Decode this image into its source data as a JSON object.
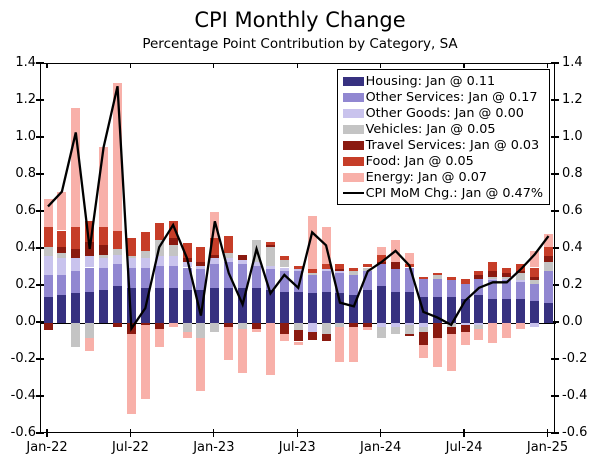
{
  "title": "CPI Monthly Change",
  "subtitle": "Percentage Point Contribution by Category, SA",
  "legend": [
    {
      "name": "housing",
      "label": "Housing: Jan @ 0.11",
      "color": "#373180",
      "kind": "patch"
    },
    {
      "name": "other-services",
      "label": "Other Services: Jan @ 0.17",
      "color": "#9187d1",
      "kind": "patch"
    },
    {
      "name": "other-goods",
      "label": "Other Goods: Jan @ 0.00",
      "color": "#c9c3ed",
      "kind": "patch"
    },
    {
      "name": "vehicles",
      "label": "Vehicles: Jan @ 0.05",
      "color": "#c4c4c4",
      "kind": "patch"
    },
    {
      "name": "travel-services",
      "label": "Travel Services: Jan @ 0.03",
      "color": "#8a1a10",
      "kind": "patch"
    },
    {
      "name": "food",
      "label": "Food: Jan @ 0.05",
      "color": "#c63d28",
      "kind": "patch"
    },
    {
      "name": "energy",
      "label": "Energy: Jan @ 0.07",
      "color": "#f8b0a9",
      "kind": "patch"
    },
    {
      "name": "cpi-mom-line",
      "label": "CPI MoM Chg.: Jan @ 0.47%",
      "color": "#000000",
      "kind": "line"
    }
  ],
  "chart_data": {
    "type": "bar",
    "subtype": "stacked-bar-with-line",
    "grid": false,
    "ylim": [
      -0.6,
      1.4
    ],
    "yticks": [
      1.4,
      1.2,
      1.0,
      0.8,
      0.6,
      0.4,
      0.2,
      0.0,
      -0.2,
      -0.4,
      -0.6
    ],
    "x_tick_labels": [
      "Jan-22",
      "Jul-22",
      "Jan-23",
      "Jul-23",
      "Jan-24",
      "Jul-24",
      "Jan-25"
    ],
    "x_tick_positions": [
      0,
      6,
      12,
      18,
      24,
      30,
      36
    ],
    "categories": [
      "Jan-22",
      "Feb-22",
      "Mar-22",
      "Apr-22",
      "May-22",
      "Jun-22",
      "Jul-22",
      "Aug-22",
      "Sep-22",
      "Oct-22",
      "Nov-22",
      "Dec-22",
      "Jan-23",
      "Feb-23",
      "Mar-23",
      "Apr-23",
      "May-23",
      "Jun-23",
      "Jul-23",
      "Aug-23",
      "Sep-23",
      "Oct-23",
      "Nov-23",
      "Dec-23",
      "Jan-24",
      "Feb-24",
      "Mar-24",
      "Apr-24",
      "May-24",
      "Jun-24",
      "Jul-24",
      "Aug-24",
      "Sep-24",
      "Oct-24",
      "Nov-24",
      "Dec-24",
      "Jan-25"
    ],
    "legend_position": "upper right",
    "series": [
      {
        "name": "Housing",
        "color": "#373180",
        "values": [
          0.14,
          0.15,
          0.16,
          0.17,
          0.18,
          0.2,
          0.19,
          0.19,
          0.19,
          0.19,
          0.18,
          0.18,
          0.19,
          0.19,
          0.19,
          0.19,
          0.18,
          0.17,
          0.17,
          0.16,
          0.17,
          0.16,
          0.15,
          0.18,
          0.2,
          0.17,
          0.17,
          0.14,
          0.14,
          0.14,
          0.13,
          0.15,
          0.13,
          0.13,
          0.13,
          0.12,
          0.11
        ]
      },
      {
        "name": "Other Services",
        "color": "#9187d1",
        "values": [
          0.12,
          0.11,
          0.12,
          0.13,
          0.12,
          0.12,
          0.11,
          0.11,
          0.12,
          0.12,
          0.12,
          0.11,
          0.13,
          0.14,
          0.13,
          0.12,
          0.11,
          0.11,
          0.11,
          0.1,
          0.11,
          0.11,
          0.11,
          0.1,
          0.12,
          0.12,
          0.13,
          0.1,
          0.1,
          0.09,
          0.08,
          0.09,
          0.1,
          0.1,
          0.09,
          0.09,
          0.17
        ]
      },
      {
        "name": "Other Goods",
        "color": "#c9c3ed",
        "values": [
          0.1,
          0.09,
          0.07,
          0.06,
          0.05,
          0.05,
          0.05,
          0.05,
          0.05,
          0.05,
          0.03,
          0.02,
          0.03,
          0.02,
          0.02,
          0.02,
          0.02,
          0.02,
          0.01,
          -0.05,
          0.01,
          0.01,
          0.0,
          0.0,
          -0.02,
          -0.02,
          -0.01,
          -0.02,
          0.0,
          0.0,
          -0.01,
          -0.01,
          0.01,
          0.01,
          0.01,
          -0.02,
          0.0
        ]
      },
      {
        "name": "Vehicles",
        "color": "#c4c4c4",
        "values": [
          0.05,
          0.03,
          -0.13,
          -0.08,
          0.02,
          0.03,
          0.01,
          0.04,
          0.09,
          0.06,
          -0.05,
          -0.08,
          -0.05,
          0.03,
          -0.03,
          0.12,
          0.1,
          0.04,
          -0.04,
          0.01,
          -0.06,
          -0.02,
          0.02,
          0.02,
          -0.06,
          -0.04,
          -0.05,
          -0.03,
          0.02,
          -0.02,
          0.0,
          -0.02,
          0.01,
          0.01,
          0.04,
          0.02,
          0.05
        ]
      },
      {
        "name": "Travel Services",
        "color": "#8a1a10",
        "values": [
          -0.04,
          0.03,
          0.05,
          0.08,
          0.05,
          -0.02,
          -0.06,
          -0.01,
          -0.03,
          0.04,
          0.02,
          0.02,
          0.02,
          -0.02,
          0.03,
          -0.03,
          0.01,
          -0.06,
          -0.06,
          -0.04,
          -0.04,
          0.01,
          -0.02,
          -0.02,
          0.01,
          0.04,
          -0.01,
          -0.07,
          -0.08,
          -0.04,
          -0.04,
          0.02,
          0.03,
          0.02,
          0.01,
          0.02,
          0.03
        ]
      },
      {
        "name": "Food",
        "color": "#c63d28",
        "values": [
          0.11,
          0.09,
          0.12,
          0.11,
          0.1,
          0.1,
          0.1,
          0.1,
          0.09,
          0.09,
          0.08,
          0.08,
          0.09,
          0.09,
          0.0,
          0.0,
          0.02,
          0.02,
          0.02,
          0.02,
          0.03,
          0.03,
          0.02,
          0.02,
          0.04,
          0.0,
          0.02,
          0.01,
          0.01,
          0.02,
          0.03,
          0.02,
          0.05,
          0.03,
          0.04,
          0.05,
          0.05
        ]
      },
      {
        "name": "Energy",
        "color": "#f8b0a9",
        "values": [
          0.15,
          0.21,
          0.64,
          -0.07,
          0.43,
          0.8,
          -0.43,
          -0.4,
          -0.1,
          -0.02,
          -0.03,
          -0.29,
          0.14,
          -0.18,
          -0.24,
          -0.02,
          -0.28,
          -0.04,
          -0.02,
          0.29,
          0.2,
          -0.19,
          -0.19,
          -0.02,
          0.04,
          0.12,
          0.06,
          -0.07,
          -0.16,
          -0.2,
          -0.07,
          -0.06,
          -0.11,
          -0.08,
          -0.03,
          0.09,
          0.07
        ]
      }
    ],
    "line_series": {
      "name": "CPI MoM Chg.",
      "color": "#000000",
      "unit": "%",
      "values": [
        0.63,
        0.71,
        1.03,
        0.4,
        0.95,
        1.28,
        -0.03,
        0.08,
        0.41,
        0.53,
        0.35,
        0.04,
        0.55,
        0.27,
        0.1,
        0.4,
        0.16,
        0.26,
        0.19,
        0.49,
        0.42,
        0.11,
        0.09,
        0.28,
        0.33,
        0.39,
        0.31,
        0.06,
        0.03,
        -0.01,
        0.12,
        0.19,
        0.22,
        0.22,
        0.29,
        0.37,
        0.47
      ]
    }
  }
}
